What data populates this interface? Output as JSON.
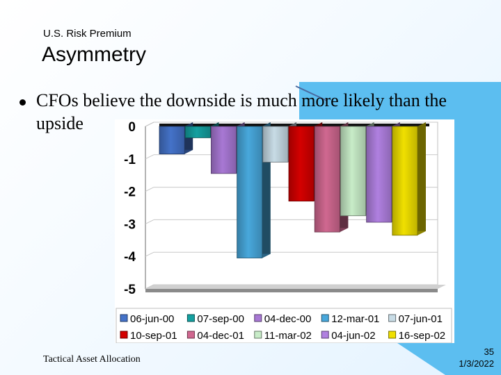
{
  "slide": {
    "subtitle": "U.S. Risk Premium",
    "title": "Asymmetry",
    "bullet": "CFOs believe the downside is much more likely than the upside",
    "footer": "Tactical Asset Allocation",
    "page_number": "35",
    "date": "1/3/2022"
  },
  "chart_data": {
    "type": "bar",
    "title": "",
    "xlabel": "",
    "ylabel": "",
    "ylim": [
      -5,
      0
    ],
    "yticks": [
      0,
      -1,
      -2,
      -3,
      -4,
      -5
    ],
    "grid": true,
    "legend_position": "bottom",
    "categories": [
      "06-jun-00",
      "07-sep-00",
      "04-dec-00",
      "12-mar-01",
      "07-jun-01",
      "10-sep-01",
      "04-dec-01",
      "11-mar-02",
      "04-jun-02",
      "16-sep-02"
    ],
    "values": [
      -0.85,
      -0.35,
      -1.45,
      -4.05,
      -1.1,
      -2.3,
      -3.25,
      -2.75,
      -2.95,
      -3.35
    ],
    "colors": [
      "#4472c8",
      "#14a0a0",
      "#a878d4",
      "#48a8dc",
      "#c8dce6",
      "#d40000",
      "#d06890",
      "#c8ecc8",
      "#b080e0",
      "#f0e000"
    ]
  }
}
